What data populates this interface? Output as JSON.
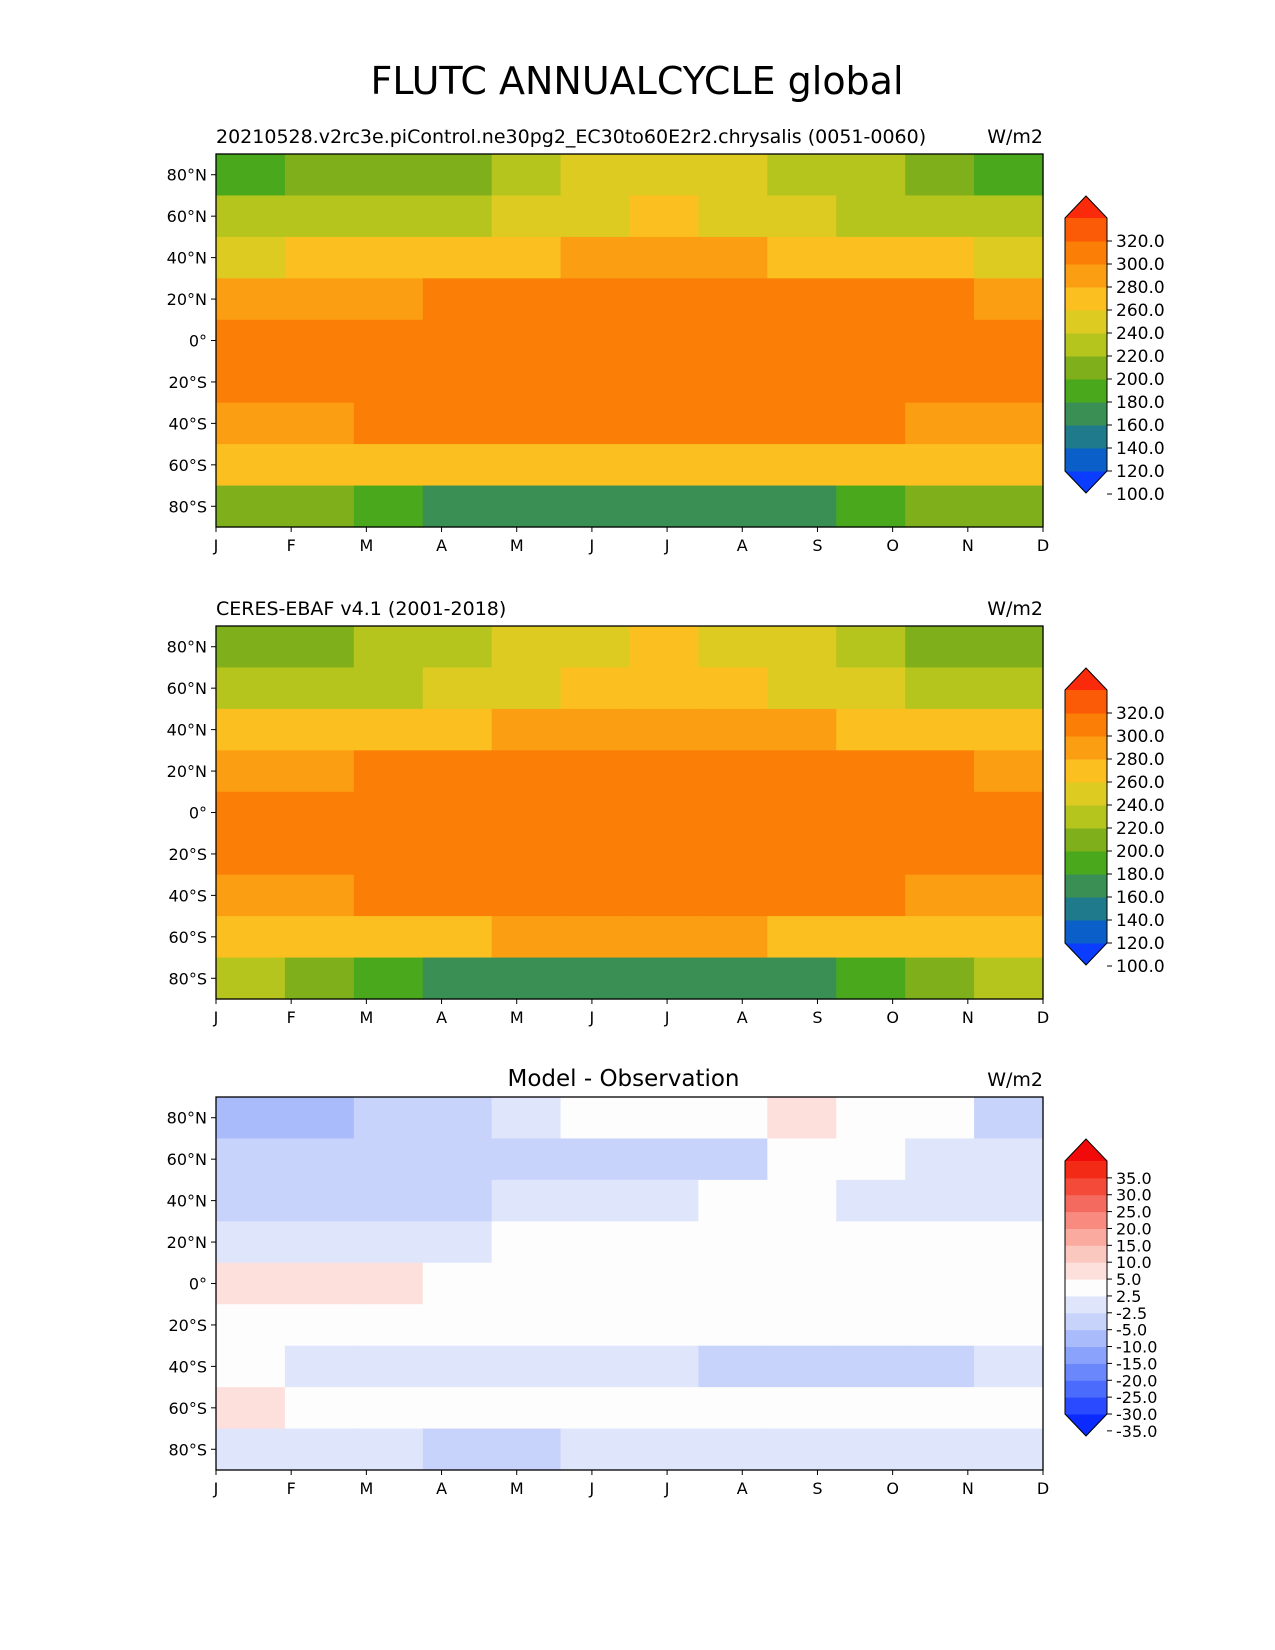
{
  "figure": {
    "title": "FLUTC ANNUALCYCLE global"
  },
  "chart_data": [
    {
      "type": "heatmap",
      "title_left": "20210528.v2rc3e.piControl.ne30pg2_EC30to60E2r2.chrysalis (0051-0060)",
      "title_center": "",
      "units": "W/m2",
      "x_ticks": [
        "J",
        "F",
        "M",
        "A",
        "M",
        "J",
        "J",
        "A",
        "S",
        "O",
        "N",
        "D"
      ],
      "y_ticks": [
        "80°N",
        "60°N",
        "40°N",
        "20°N",
        "0°",
        "20°S",
        "40°S",
        "60°S",
        "80°S"
      ],
      "ylim": [
        -90,
        90
      ],
      "colorbar": {
        "levels": [
          100,
          120,
          140,
          160,
          180,
          200,
          220,
          240,
          260,
          280,
          300,
          320
        ],
        "tick_labels": [
          "320.0",
          "300.0",
          "280.0",
          "260.0",
          "240.0",
          "220.0",
          "200.0",
          "180.0",
          "160.0",
          "140.0",
          "120.0",
          "100.0"
        ],
        "colors": [
          "#0a3dff",
          "#0a5fc8",
          "#1f7a8c",
          "#3a8f55",
          "#4aa81c",
          "#7fb01c",
          "#b6c41e",
          "#ddcb22",
          "#fbc020",
          "#fb9e12",
          "#fb7e06",
          "#fb5a06",
          "#fb2a0a"
        ],
        "extend": "both"
      },
      "values": [
        [
          178,
          180,
          186,
          198,
          214,
          226,
          230,
          228,
          214,
          200,
          186,
          176
        ],
        [
          204,
          205,
          208,
          216,
          226,
          236,
          240,
          238,
          228,
          216,
          206,
          202
        ],
        [
          238,
          240,
          242,
          248,
          256,
          264,
          268,
          266,
          258,
          250,
          242,
          238
        ],
        [
          276,
          276,
          278,
          282,
          286,
          290,
          292,
          292,
          288,
          284,
          280,
          276
        ],
        [
          286,
          286,
          286,
          286,
          286,
          288,
          292,
          294,
          292,
          288,
          286,
          286
        ],
        [
          286,
          286,
          286,
          286,
          286,
          286,
          286,
          286,
          286,
          286,
          286,
          286
        ],
        [
          278,
          278,
          280,
          282,
          282,
          282,
          282,
          282,
          282,
          280,
          278,
          278
        ],
        [
          246,
          248,
          252,
          256,
          258,
          258,
          258,
          258,
          256,
          252,
          248,
          246
        ],
        [
          196,
          186,
          170,
          158,
          150,
          146,
          144,
          146,
          152,
          166,
          184,
          196
        ]
      ]
    },
    {
      "type": "heatmap",
      "title_left": "CERES-EBAF v4.1 (2001-2018)",
      "title_center": "",
      "units": "W/m2",
      "x_ticks": [
        "J",
        "F",
        "M",
        "A",
        "M",
        "J",
        "J",
        "A",
        "S",
        "O",
        "N",
        "D"
      ],
      "y_ticks": [
        "80°N",
        "60°N",
        "40°N",
        "20°N",
        "0°",
        "20°S",
        "40°S",
        "60°S",
        "80°S"
      ],
      "ylim": [
        -90,
        90
      ],
      "colorbar": {
        "levels": [
          100,
          120,
          140,
          160,
          180,
          200,
          220,
          240,
          260,
          280,
          300,
          320
        ],
        "tick_labels": [
          "320.0",
          "300.0",
          "280.0",
          "260.0",
          "240.0",
          "220.0",
          "200.0",
          "180.0",
          "160.0",
          "140.0",
          "120.0",
          "100.0"
        ],
        "colors": [
          "#0a3dff",
          "#0a5fc8",
          "#1f7a8c",
          "#3a8f55",
          "#4aa81c",
          "#7fb01c",
          "#b6c41e",
          "#ddcb22",
          "#fbc020",
          "#fb9e12",
          "#fb7e06",
          "#fb5a06",
          "#fb2a0a"
        ],
        "extend": "both"
      },
      "values": [
        [
          196,
          198,
          204,
          212,
          226,
          236,
          240,
          236,
          222,
          208,
          198,
          194
        ],
        [
          212,
          214,
          218,
          226,
          236,
          248,
          252,
          248,
          234,
          222,
          214,
          210
        ],
        [
          244,
          246,
          248,
          254,
          262,
          270,
          274,
          270,
          262,
          254,
          246,
          244
        ],
        [
          278,
          278,
          280,
          284,
          288,
          292,
          294,
          294,
          290,
          286,
          282,
          278
        ],
        [
          286,
          286,
          286,
          288,
          290,
          292,
          294,
          294,
          292,
          290,
          288,
          286
        ],
        [
          286,
          286,
          286,
          286,
          286,
          286,
          286,
          286,
          286,
          286,
          286,
          286
        ],
        [
          278,
          278,
          280,
          282,
          284,
          284,
          284,
          284,
          282,
          280,
          278,
          278
        ],
        [
          248,
          250,
          254,
          258,
          260,
          260,
          260,
          260,
          258,
          254,
          250,
          248
        ],
        [
          204,
          190,
          172,
          158,
          150,
          146,
          144,
          146,
          152,
          168,
          188,
          204
        ]
      ]
    },
    {
      "type": "heatmap",
      "title_left": "",
      "title_center": "Model - Observation",
      "units": "W/m2",
      "x_ticks": [
        "J",
        "F",
        "M",
        "A",
        "M",
        "J",
        "J",
        "A",
        "S",
        "O",
        "N",
        "D"
      ],
      "y_ticks": [
        "80°N",
        "60°N",
        "40°N",
        "20°N",
        "0°",
        "20°S",
        "40°S",
        "60°S",
        "80°S"
      ],
      "ylim": [
        -90,
        90
      ],
      "colorbar": {
        "levels": [
          -35,
          -30,
          -25,
          -20,
          -15,
          -10,
          -5,
          -2.5,
          2.5,
          5,
          10,
          15,
          20,
          25,
          30,
          35
        ],
        "tick_labels": [
          "35.0",
          "30.0",
          "25.0",
          "20.0",
          "15.0",
          "10.0",
          "5.0",
          "2.5",
          "-2.5",
          "-5.0",
          "-10.0",
          "-15.0",
          "-20.0",
          "-25.0",
          "-30.0",
          "-35.0"
        ],
        "colors": [
          "#0a2aff",
          "#2a4aff",
          "#4a6bfb",
          "#6a88fb",
          "#8aa2fb",
          "#aabbfb",
          "#c8d3fb",
          "#dfe6fb",
          "#fdfdfd",
          "#fde0dc",
          "#fbc8c0",
          "#fbaaa0",
          "#f98a80",
          "#f56a5e",
          "#f44a3a",
          "#f32a16",
          "#f20a0a"
        ],
        "extend": "both"
      },
      "values": [
        [
          -12,
          -12,
          -10,
          -6,
          -3,
          -2,
          -1,
          0,
          3,
          2,
          -2,
          -6
        ],
        [
          -9,
          -9,
          -8,
          -8,
          -6,
          -8,
          -7,
          -6,
          -2,
          -1,
          -3,
          -5
        ],
        [
          -8,
          -8,
          -7,
          -6,
          -5,
          -5,
          -3,
          -1,
          -1,
          -3,
          -3,
          -4
        ],
        [
          -4,
          -4,
          -4,
          -3,
          -2,
          -1,
          -1,
          0,
          0,
          -1,
          -1,
          -2
        ],
        [
          3,
          3,
          3,
          2,
          0,
          0,
          0,
          0,
          0,
          0,
          0,
          0
        ],
        [
          0,
          0,
          0,
          -2,
          -1,
          0,
          0,
          0,
          2,
          1,
          0,
          0
        ],
        [
          -2,
          -3,
          -3,
          -4,
          -4,
          -4,
          -5,
          -6,
          -6,
          -6,
          -6,
          -4
        ],
        [
          3,
          2,
          1,
          0,
          0,
          0,
          0,
          0,
          0,
          0,
          0,
          2
        ],
        [
          -4,
          -5,
          -5,
          -6,
          -6,
          -5,
          -5,
          -4,
          -4,
          -5,
          -5,
          -4
        ]
      ]
    }
  ]
}
